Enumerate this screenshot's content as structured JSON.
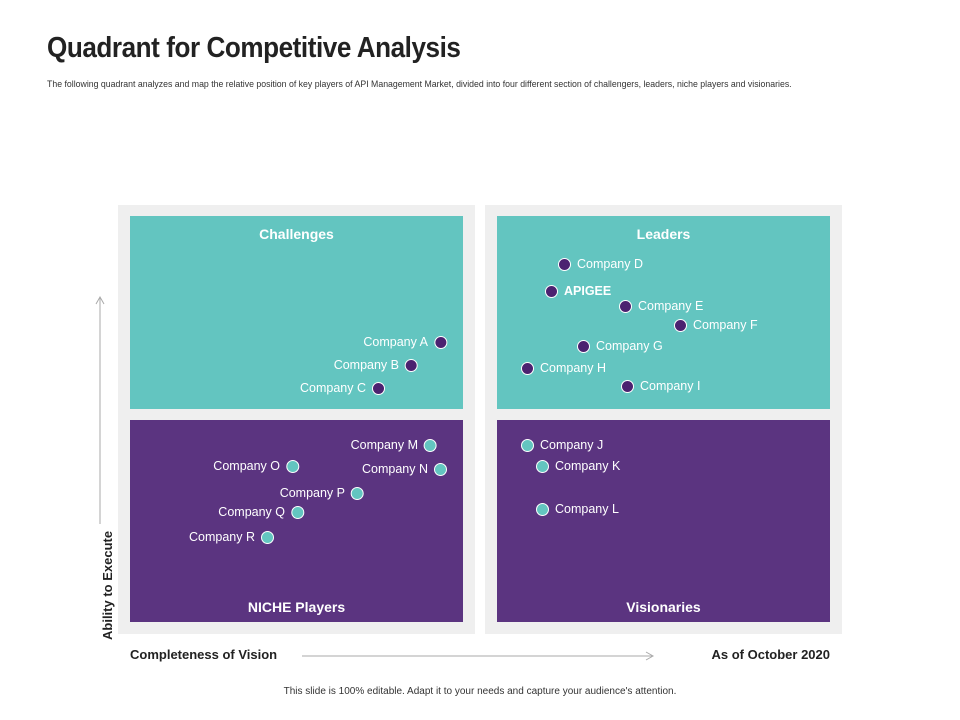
{
  "header": {
    "title": "Quadrant for Competitive Analysis",
    "subtitle": "The following quadrant analyzes and map the relative position of  key players of API Management Market, divided into four different section of challengers, leaders, niche players and visionaries."
  },
  "quadrants": {
    "top_left": "Challenges",
    "top_right": "Leaders",
    "bottom_left": "NICHE Players",
    "bottom_right": "Visionaries"
  },
  "companies": {
    "a": "Company A",
    "b": "Company B",
    "c": "Company C",
    "d": "Company D",
    "apigee": "APIGEE",
    "e": "Company E",
    "f": "Company F",
    "g": "Company G",
    "h": "Company H",
    "i": "Company I",
    "j": "Company J",
    "k": "Company K",
    "l": "Company L",
    "m": "Company M",
    "n": "Company N",
    "o": "Company O",
    "p": "Company P",
    "q": "Company Q",
    "r": "Company R"
  },
  "axes": {
    "y_label": "Ability to Execute",
    "x_label": "Completeness of Vision",
    "date": "As of October 2020"
  },
  "footer": "This slide is 100% editable. Adapt it to your needs and capture your audience's attention.",
  "colors": {
    "teal": "#63c5c0",
    "purple": "#5b3480",
    "dot_purple": "#4b2270",
    "frame": "#efefef"
  }
}
